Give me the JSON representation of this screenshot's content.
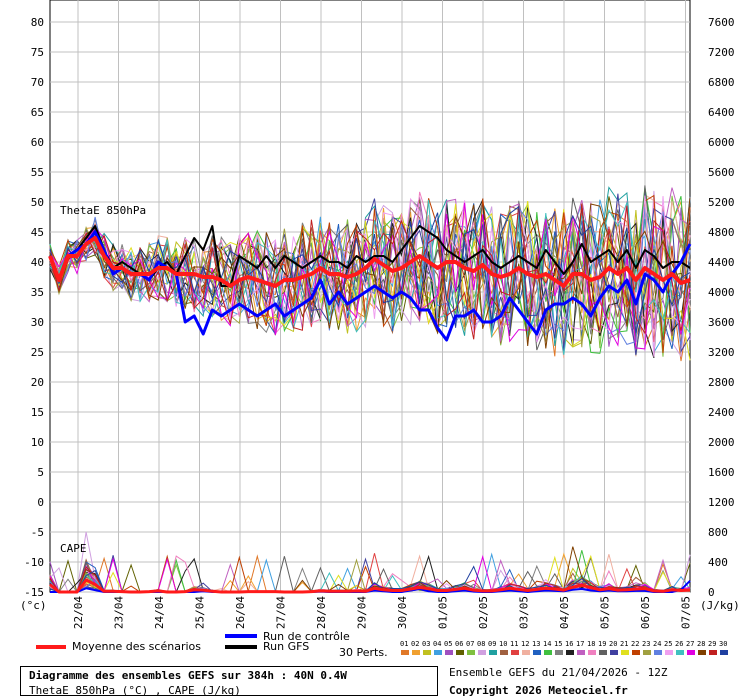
{
  "chart_data": {
    "type": "line",
    "left_axis": {
      "unit": "(°c)",
      "ticks": [
        "80",
        "75",
        "70",
        "65",
        "60",
        "55",
        "50",
        "45",
        "40",
        "35",
        "30",
        "25",
        "20",
        "15",
        "10",
        "5",
        "0",
        "-5",
        "-10",
        "-15"
      ]
    },
    "right_axis": {
      "unit": "(J/kg)",
      "ticks": [
        "7600",
        "7200",
        "6800",
        "6400",
        "6000",
        "5600",
        "5200",
        "4800",
        "4400",
        "4000",
        "3600",
        "3200",
        "2800",
        "2400",
        "2000",
        "1600",
        "1200",
        "800",
        "400",
        "0"
      ]
    },
    "x_ticks": [
      "22/04",
      "23/04",
      "24/04",
      "25/04",
      "26/04",
      "27/04",
      "28/04",
      "29/04",
      "30/04",
      "01/05",
      "02/05",
      "03/05",
      "04/05",
      "05/05",
      "06/05",
      "07/05"
    ],
    "annotations": {
      "thetae": "ThetaE 850hPa",
      "cape": "CAPE"
    },
    "thetae_mean": [
      41,
      37,
      41,
      41,
      43,
      44,
      41,
      39,
      39,
      38,
      38,
      38,
      39,
      39,
      38,
      38,
      38,
      37.5,
      37.5,
      37,
      36,
      37,
      37.5,
      37,
      36.5,
      36,
      37,
      37,
      37.5,
      38,
      39,
      38,
      38,
      37.5,
      38,
      39,
      40.5,
      39.5,
      38.5,
      39,
      40,
      41,
      40,
      39,
      40,
      40,
      39,
      38.5,
      39.5,
      38,
      37.5,
      38,
      39,
      38,
      37.5,
      38,
      37,
      36,
      38,
      38,
      37,
      37.5,
      39,
      38,
      39,
      37,
      39,
      38,
      37,
      38,
      36.5,
      37
    ],
    "thetae_control": [
      41,
      37,
      41,
      42,
      43,
      45,
      42,
      38,
      39,
      38,
      38,
      37,
      40,
      39,
      38,
      30,
      31,
      28,
      32,
      31,
      32,
      33,
      32,
      31,
      32,
      33,
      31,
      32,
      33,
      34,
      37,
      33,
      35,
      33,
      34,
      35,
      36,
      35,
      34,
      35,
      34,
      32,
      32,
      29,
      27,
      31,
      31,
      32,
      30,
      30,
      31,
      34,
      32,
      30,
      28,
      32,
      33,
      33,
      34,
      33,
      31,
      34,
      36,
      35,
      37,
      33,
      38,
      37,
      35,
      38,
      40,
      43
    ],
    "thetae_gfs": [
      41,
      37,
      41,
      42,
      44,
      46,
      42,
      39,
      40,
      39,
      38,
      37,
      39,
      40,
      38,
      41,
      44,
      42,
      46,
      36,
      36,
      41,
      40,
      39,
      41,
      39,
      41,
      40,
      39,
      40,
      41,
      40,
      40,
      39,
      41,
      40,
      41,
      41,
      40,
      42,
      44,
      46,
      45,
      44,
      42,
      41,
      40,
      41,
      42,
      40,
      39,
      40,
      41,
      40,
      39,
      42,
      40,
      38,
      40,
      43,
      40,
      41,
      42,
      40,
      42,
      39,
      42,
      41,
      39,
      40,
      40,
      39
    ],
    "cape_mean": [
      100,
      0,
      0,
      0,
      160,
      100,
      10,
      10,
      5,
      0,
      0,
      5,
      15,
      0,
      0,
      5,
      30,
      25,
      10,
      0,
      0,
      0,
      5,
      5,
      5,
      5,
      0,
      0,
      0,
      5,
      15,
      10,
      10,
      10,
      15,
      10,
      50,
      30,
      20,
      20,
      40,
      60,
      45,
      20,
      20,
      35,
      50,
      25,
      15,
      15,
      30,
      50,
      35,
      20,
      35,
      50,
      40,
      25,
      65,
      90,
      60,
      30,
      45,
      25,
      30,
      40,
      45,
      15,
      10,
      30,
      20,
      25
    ],
    "cape_control": [
      0,
      0,
      0,
      0,
      50,
      25,
      0,
      0,
      0,
      0,
      0,
      0,
      0,
      0,
      0,
      0,
      0,
      10,
      0,
      0,
      0,
      0,
      0,
      0,
      0,
      0,
      0,
      0,
      0,
      0,
      5,
      0,
      0,
      0,
      0,
      0,
      20,
      10,
      0,
      0,
      20,
      40,
      10,
      0,
      0,
      10,
      20,
      5,
      0,
      0,
      10,
      20,
      10,
      0,
      10,
      20,
      15,
      10,
      30,
      40,
      20,
      10,
      20,
      10,
      10,
      15,
      15,
      0,
      0,
      0,
      30,
      150
    ]
  },
  "legend": {
    "mean": "Moyenne des scénarios",
    "control": "Run de contrôle",
    "gfs": "Run GFS",
    "perts": "30 Perts.",
    "pert_numbers": [
      "01",
      "02",
      "03",
      "04",
      "05",
      "06",
      "07",
      "08",
      "09",
      "10",
      "11",
      "12",
      "13",
      "14",
      "15",
      "16",
      "17",
      "18",
      "19",
      "20",
      "21",
      "22",
      "23",
      "24",
      "25",
      "26",
      "27",
      "28",
      "29",
      "30"
    ],
    "pert_colors": [
      "#e07828",
      "#f0a030",
      "#c0c020",
      "#40a0e0",
      "#a050c0",
      "#606000",
      "#80c040",
      "#d0a0e0",
      "#20a0a0",
      "#a06040",
      "#e04040",
      "#f0b0a0",
      "#2060c0",
      "#40c040",
      "#808080",
      "#202020",
      "#c060c0",
      "#f080c0",
      "#606060",
      "#4040a0",
      "#e0e020",
      "#c04000",
      "#a0a040",
      "#6080e0",
      "#f0a0f0",
      "#40c0c0",
      "#e000e0",
      "#804000",
      "#c02020",
      "#2040a0"
    ]
  },
  "info": {
    "title": "Diagramme des ensembles GEFS sur 384h : 40N 0.4W",
    "subtitle": "ThetaE 850hPa (°C) , CAPE (J/kg)",
    "run": "Ensemble GEFS du 21/04/2026 - 12Z",
    "copyright": "Copyright 2026 Meteociel.fr"
  },
  "colors": {
    "mean": "#ff1a1a",
    "control": "#0000ff",
    "gfs": "#000000",
    "grid": "#c0c0c0"
  }
}
